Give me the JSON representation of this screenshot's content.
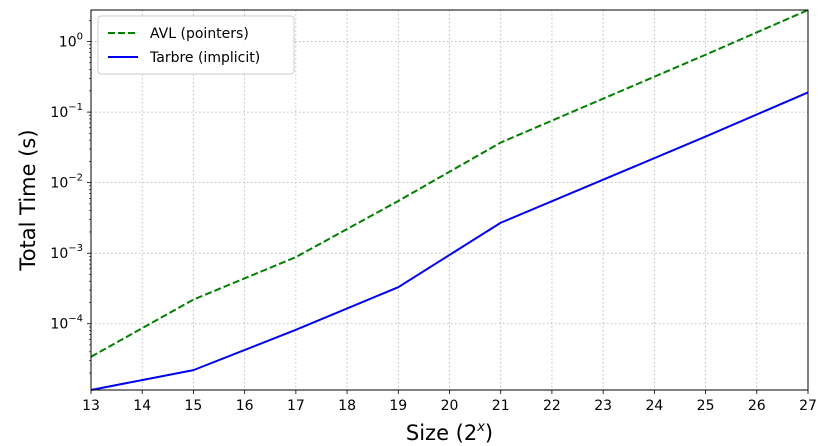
{
  "chart_data": {
    "type": "line",
    "xlabel": "Size (2^x)",
    "xlabel_base": "Size (2",
    "xlabel_sup": "x",
    "xlabel_close": ")",
    "ylabel": "Total Time (s)",
    "y_scale": "log",
    "xlim": [
      13,
      27
    ],
    "ylim": [
      1.15e-05,
      2.8
    ],
    "x_ticks": [
      "13",
      "14",
      "15",
      "16",
      "17",
      "18",
      "19",
      "20",
      "21",
      "22",
      "23",
      "24",
      "25",
      "26",
      "27"
    ],
    "y_ticks": [
      {
        "base": "10",
        "exp": "0",
        "value": 1
      },
      {
        "base": "10",
        "exp": "−1",
        "value": 0.1
      },
      {
        "base": "10",
        "exp": "−2",
        "value": 0.01
      },
      {
        "base": "10",
        "exp": "−3",
        "value": 0.001
      },
      {
        "base": "10",
        "exp": "−4",
        "value": 0.0001
      }
    ],
    "grid": true,
    "legend_position": "top-left",
    "series": [
      {
        "name": "AVL (pointers)",
        "color": "#008000",
        "style": "dashed",
        "x": [
          13,
          15,
          17,
          19,
          21,
          23,
          25,
          27
        ],
        "y": [
          3.4e-05,
          0.00022,
          0.00088,
          0.0055,
          0.037,
          0.155,
          0.65,
          2.8
        ]
      },
      {
        "name": "Tarbre (implicit)",
        "color": "#0000ee",
        "style": "solid",
        "x": [
          13,
          15,
          17,
          19,
          21,
          23,
          25,
          27
        ],
        "y": [
          1.15e-05,
          2.2e-05,
          8.2e-05,
          0.00033,
          0.0027,
          0.011,
          0.045,
          0.19
        ]
      }
    ]
  }
}
